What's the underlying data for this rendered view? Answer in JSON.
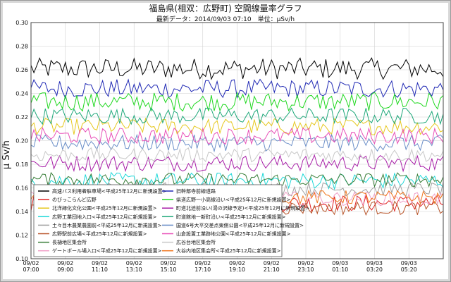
{
  "header": {
    "title": "福島県(相双：広野町) 空間線量率グラフ",
    "subtitle": "最新データ：2014/09/03 07:10　単位：μSv/h"
  },
  "chart_data": {
    "type": "line",
    "ylabel": "μ Sv/h",
    "ylim": [
      0.1,
      0.3
    ],
    "yticks": [
      "0.10",
      "0.12",
      "0.14",
      "0.16",
      "0.18",
      "0.20",
      "0.22",
      "0.24",
      "0.26",
      "0.28",
      "0.30"
    ],
    "xlim": [
      0,
      24
    ],
    "xtick_labels": [
      [
        "09/02",
        "07:00"
      ],
      [
        "09/02",
        "09:00"
      ],
      [
        "09/02",
        "11:10"
      ],
      [
        "09/02",
        "13:10"
      ],
      [
        "09/02",
        "15:10"
      ],
      [
        "09/02",
        "17:10"
      ],
      [
        "09/02",
        "19:10"
      ],
      [
        "09/02",
        "21:10"
      ],
      [
        "09/02",
        "23:10"
      ],
      [
        "09/03",
        "01:10"
      ],
      [
        "09/03",
        "03:20"
      ],
      [
        "09/03",
        "05:20"
      ]
    ],
    "grid": true,
    "legend_position": "bottom",
    "series": [
      {
        "name": "高速バス利用者駐車場<平成25年12月に新規設置>",
        "color": "#000000",
        "mean": 0.261,
        "amp": 0.009
      },
      {
        "name": "旧幹部寺前線道路",
        "color": "#1f28b4",
        "mean": 0.244,
        "amp": 0.008
      },
      {
        "name": "のびっこらんど広野",
        "color": "#e02424",
        "mean": 0.147,
        "amp": 0.007
      },
      {
        "name": "県道広野一小高線沿い<平成25年12月に新規設置>",
        "color": "#1fd81f",
        "mean": 0.233,
        "amp": 0.008
      },
      {
        "name": "北洋緑化文化公園<平成25年12月に新規設置>",
        "color": "#e6c81f",
        "mean": 0.212,
        "amp": 0.007
      },
      {
        "name": "町道北迫前沿い(湯の沢線予定)<平成25年12月に新規設置>",
        "color": "#a81fa8",
        "mean": 0.181,
        "amp": 0.007
      },
      {
        "name": "広野工業団地入口<平成25年12月に新規設置>",
        "color": "#1fd8d8",
        "mean": 0.166,
        "amp": 0.007
      },
      {
        "name": "町道館地一新町沿い<平成25年12月に新規設置>",
        "color": "#1fa87a",
        "mean": 0.221,
        "amp": 0.007
      },
      {
        "name": "土々目木農業農園前<平成25年12月に新規設置>",
        "color": "#a0a0a0",
        "mean": 0.159,
        "amp": 0.006
      },
      {
        "name": "国道6号大平交差点東側公園<平成25年12月に新規設置>",
        "color": "#6b8fc8",
        "mean": 0.198,
        "amp": 0.007
      },
      {
        "name": "広野駅前広場<平成25年12月に新規設置>",
        "color": "#b8552a",
        "mean": 0.143,
        "amp": 0.006
      },
      {
        "name": "山倉設置工業跡地公園<平成25年12月に新規設置>",
        "color": "#e84fb8",
        "mean": 0.204,
        "amp": 0.007
      },
      {
        "name": "長樋地区集会所",
        "color": "#3a7f3a",
        "mean": 0.167,
        "amp": 0.006
      },
      {
        "name": "広谷台地区集会所",
        "color": "#c8c8c8",
        "mean": 0.188,
        "amp": 0.006
      },
      {
        "name": "ゲートボール場入口<平成25年12月に新規設置>",
        "color": "#f0a0c8",
        "mean": 0.151,
        "amp": 0.006
      },
      {
        "name": "大谷内地区集会所<平成25年12月に新規設置>",
        "color": "#f07820",
        "mean": 0.152,
        "amp": 0.006
      }
    ]
  }
}
